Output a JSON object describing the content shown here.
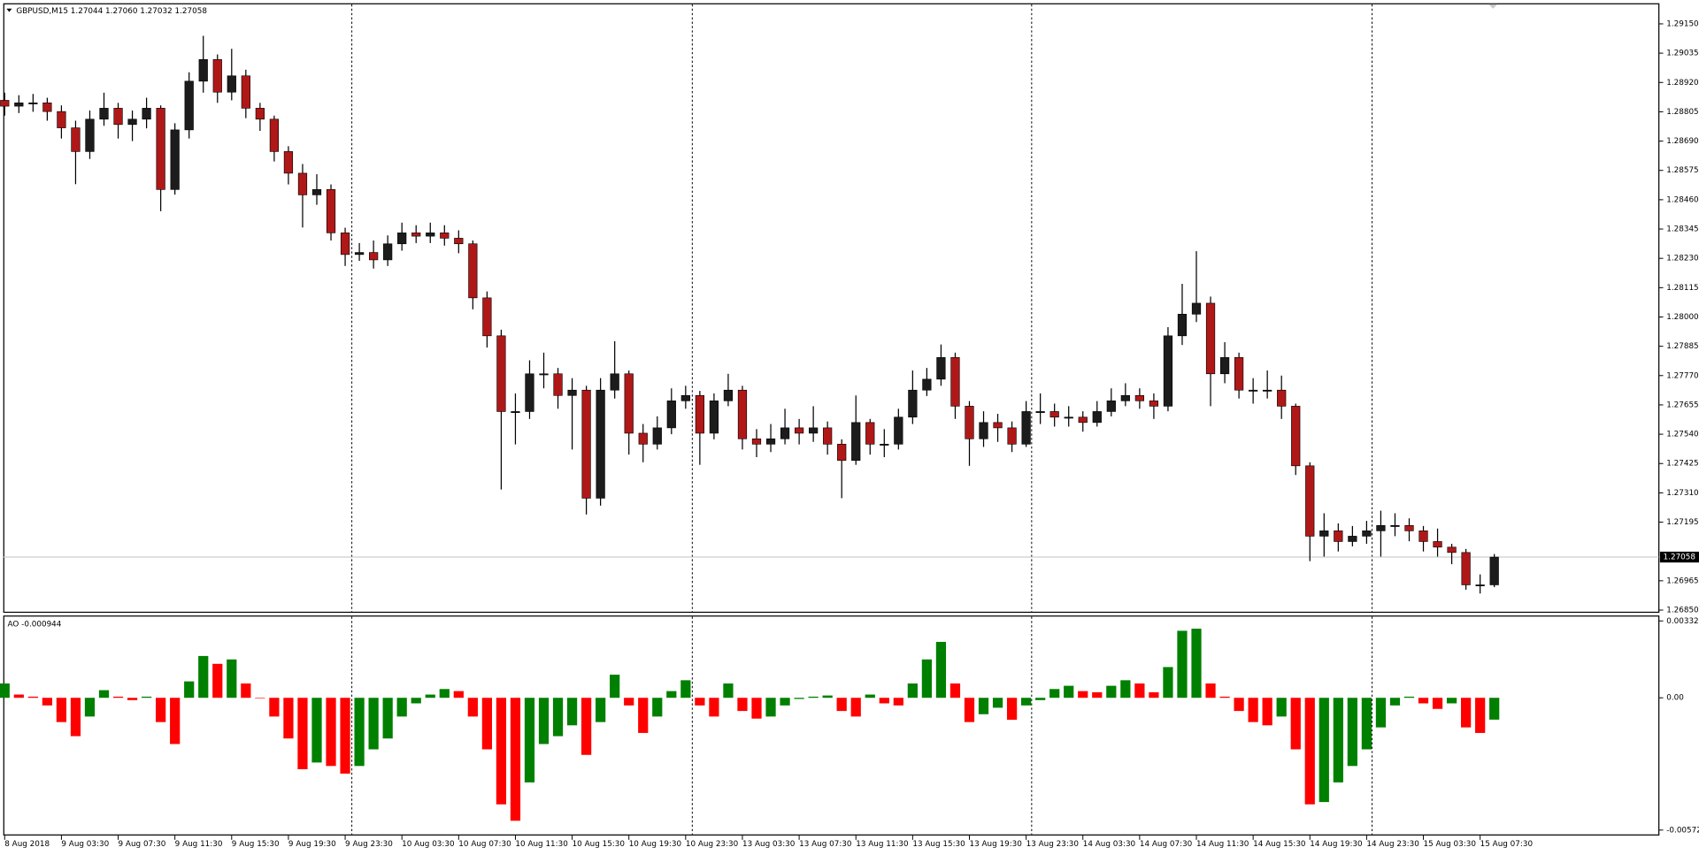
{
  "chart_data": [
    {
      "type": "candlestick",
      "title": "GBPUSD,M15  1.27044 1.27060 1.27032 1.27058",
      "up_color": "#1c1c1c",
      "down_color": "#b01818",
      "wick_color": "#000000",
      "xlim": [
        -0.1,
        116.6
      ],
      "ylim": [
        1.2685,
        1.2915
      ],
      "yticks": [
        {
          "value": 1.2915,
          "label": "1.29150"
        },
        1.29035,
        {
          "value": 1.2892,
          "label": "1.28920"
        },
        1.28805,
        {
          "value": 1.2869,
          "label": "1.28690"
        },
        1.28575,
        {
          "value": 1.2846,
          "label": "1.28460"
        },
        1.28345,
        {
          "value": 1.2823,
          "label": "1.28230"
        },
        1.28115,
        {
          "value": 1.28,
          "label": "1.28000"
        },
        1.27885,
        {
          "value": 1.2777,
          "label": "1.27770"
        },
        1.27655,
        {
          "value": 1.2754,
          "label": "1.27540"
        },
        1.27425,
        {
          "value": 1.2731,
          "label": "1.27310"
        },
        1.27195,
        1.26965,
        {
          "value": 1.2685,
          "label": "1.26850"
        }
      ],
      "last_price": 1.27058,
      "open": [
        1.2885,
        1.28827,
        1.2884,
        1.2884,
        1.28806,
        1.28742,
        1.28649,
        1.28776,
        1.28819,
        1.28755,
        1.28776,
        1.28819,
        1.285,
        1.28734,
        1.28925,
        1.2901,
        1.28882,
        1.28946,
        1.28819,
        1.28776,
        1.28649,
        1.28564,
        1.28479,
        1.285,
        1.2833,
        1.28245,
        1.28253,
        1.28224,
        1.28287,
        1.2833,
        1.28317,
        1.2833,
        1.28309,
        1.28287,
        1.28075,
        1.27926,
        1.27629,
        1.27629,
        1.27777,
        1.27777,
        1.27692,
        1.27713,
        1.27289,
        1.27713,
        1.27777,
        1.27544,
        1.27501,
        1.27565,
        1.27671,
        1.27692,
        1.27544,
        1.27671,
        1.27713,
        1.27522,
        1.27501,
        1.27522,
        1.27565,
        1.27544,
        1.27565,
        1.27501,
        1.27437,
        1.27586,
        1.27501,
        1.27501,
        1.27607,
        1.27713,
        1.27756,
        1.27841,
        1.2765,
        1.27522,
        1.27586,
        1.27565,
        1.27501,
        1.27629,
        1.27629,
        1.27607,
        1.27607,
        1.27586,
        1.27629,
        1.27671,
        1.27692,
        1.27671,
        1.2765,
        1.27926,
        1.28011,
        1.28054,
        1.27777,
        1.27841,
        1.27713,
        1.27713,
        1.27713,
        1.2765,
        1.27416,
        1.2714,
        1.27161,
        1.27119,
        1.2714,
        1.27161,
        1.27182,
        1.27182,
        1.27161,
        1.27119,
        1.27097,
        1.27076,
        1.26949,
        1.26949
      ],
      "high": [
        1.2888,
        1.2887,
        1.28875,
        1.2886,
        1.2883,
        1.2877,
        1.2881,
        1.2888,
        1.2884,
        1.2881,
        1.2886,
        1.2883,
        1.2876,
        1.2896,
        1.29103,
        1.2903,
        1.29052,
        1.2897,
        1.2884,
        1.2879,
        1.2867,
        1.286,
        1.2856,
        1.2852,
        1.2835,
        1.2829,
        1.283,
        1.2832,
        1.2837,
        1.2836,
        1.2837,
        1.2836,
        1.2834,
        1.283,
        1.281,
        1.2795,
        1.277,
        1.2783,
        1.2786,
        1.278,
        1.2776,
        1.2773,
        1.2776,
        1.27905,
        1.2779,
        1.2758,
        1.2761,
        1.2772,
        1.2773,
        1.2771,
        1.277,
        1.27777,
        1.2773,
        1.2756,
        1.2758,
        1.2764,
        1.276,
        1.2765,
        1.2759,
        1.2752,
        1.27692,
        1.276,
        1.2756,
        1.2764,
        1.2779,
        1.278,
        1.27892,
        1.2786,
        1.2767,
        1.2763,
        1.2762,
        1.2759,
        1.2767,
        1.277,
        1.2766,
        1.2765,
        1.2763,
        1.2767,
        1.2772,
        1.2774,
        1.2772,
        1.277,
        1.2796,
        1.2813,
        1.28258,
        1.2808,
        1.27901,
        1.2786,
        1.2776,
        1.2779,
        1.2777,
        1.2766,
        1.2743,
        1.2723,
        1.2719,
        1.2718,
        1.272,
        1.2724,
        1.2723,
        1.2721,
        1.2718,
        1.2717,
        1.2711,
        1.2709,
        1.2699,
        1.2707
      ],
      "low": [
        1.2879,
        1.288,
        1.28805,
        1.2877,
        1.287,
        1.28521,
        1.2862,
        1.2875,
        1.287,
        1.2869,
        1.2874,
        1.28415,
        1.2848,
        1.287,
        1.2888,
        1.2884,
        1.2885,
        1.2878,
        1.2873,
        1.2861,
        1.2852,
        1.28351,
        1.2844,
        1.283,
        1.282,
        1.2822,
        1.2819,
        1.282,
        1.2826,
        1.2829,
        1.2829,
        1.2828,
        1.2825,
        1.2803,
        1.2788,
        1.27323,
        1.275,
        1.276,
        1.2772,
        1.2764,
        1.2748,
        1.27225,
        1.2726,
        1.2768,
        1.2746,
        1.2743,
        1.2748,
        1.2754,
        1.2764,
        1.2742,
        1.2752,
        1.2765,
        1.2748,
        1.2745,
        1.2747,
        1.275,
        1.275,
        1.2751,
        1.2746,
        1.27289,
        1.2742,
        1.2746,
        1.2745,
        1.2748,
        1.2758,
        1.2769,
        1.2773,
        1.276,
        1.27416,
        1.2749,
        1.2751,
        1.2747,
        1.2749,
        1.2758,
        1.2757,
        1.2757,
        1.2755,
        1.2757,
        1.2761,
        1.2765,
        1.2764,
        1.276,
        1.2763,
        1.2789,
        1.2798,
        1.2765,
        1.2774,
        1.2768,
        1.2766,
        1.2768,
        1.276,
        1.2738,
        1.27042,
        1.2706,
        1.2708,
        1.271,
        1.2711,
        1.2706,
        1.2714,
        1.2712,
        1.2708,
        1.2706,
        1.2703,
        1.2693,
        1.26915,
        1.2694
      ],
      "close": [
        1.28827,
        1.2884,
        1.2884,
        1.28806,
        1.28742,
        1.28649,
        1.28776,
        1.28819,
        1.28755,
        1.28776,
        1.28819,
        1.285,
        1.28734,
        1.28925,
        1.2901,
        1.28882,
        1.28946,
        1.28819,
        1.28776,
        1.28649,
        1.28564,
        1.28479,
        1.285,
        1.2833,
        1.28245,
        1.28253,
        1.28224,
        1.28287,
        1.2833,
        1.28317,
        1.2833,
        1.28309,
        1.28287,
        1.28075,
        1.27926,
        1.27629,
        1.27629,
        1.27777,
        1.27777,
        1.27692,
        1.27713,
        1.27289,
        1.27713,
        1.27777,
        1.27544,
        1.27501,
        1.27565,
        1.27671,
        1.27692,
        1.27544,
        1.27671,
        1.27713,
        1.27522,
        1.27501,
        1.27522,
        1.27565,
        1.27544,
        1.27565,
        1.27501,
        1.27437,
        1.27586,
        1.27501,
        1.27501,
        1.27607,
        1.27713,
        1.27756,
        1.27841,
        1.2765,
        1.27522,
        1.27586,
        1.27565,
        1.27501,
        1.27629,
        1.27629,
        1.27607,
        1.27607,
        1.27586,
        1.27629,
        1.27671,
        1.27692,
        1.27671,
        1.2765,
        1.27926,
        1.28011,
        1.28054,
        1.27777,
        1.27841,
        1.27713,
        1.27713,
        1.27713,
        1.2765,
        1.27416,
        1.2714,
        1.27161,
        1.27119,
        1.2714,
        1.27161,
        1.27182,
        1.27182,
        1.27161,
        1.27119,
        1.27097,
        1.27076,
        1.26949,
        1.26949,
        1.27058
      ]
    },
    {
      "type": "bar",
      "title": "AO -0.000944",
      "up_color": "#008000",
      "down_color": "#ff0000",
      "xlim": [
        -0.1,
        116.6
      ],
      "ylim": [
        -0.005723,
        0.003326
      ],
      "yticks": [
        0.003326,
        {
          "value": 0,
          "label": "0.00"
        },
        -0.005723
      ],
      "xticks": [
        {
          "value": 0,
          "label": "8 Aug 2018"
        },
        {
          "value": 4,
          "label": "9 Aug 03:30"
        },
        {
          "value": 8,
          "label": "9 Aug 07:30"
        },
        {
          "value": 12,
          "label": "9 Aug 11:30"
        },
        {
          "value": 16,
          "label": "9 Aug 15:30"
        },
        {
          "value": 20,
          "label": "9 Aug 19:30"
        },
        {
          "value": 24,
          "label": "9 Aug 23:30"
        },
        {
          "value": 28,
          "label": "10 Aug 03:30"
        },
        {
          "value": 32,
          "label": "10 Aug 07:30"
        },
        {
          "value": 36,
          "label": "10 Aug 11:30"
        },
        {
          "value": 40,
          "label": "10 Aug 15:30"
        },
        {
          "value": 44,
          "label": "10 Aug 19:30"
        },
        {
          "value": 48,
          "label": "10 Aug 23:30"
        },
        {
          "value": 52,
          "label": "13 Aug 03:30"
        },
        {
          "value": 56,
          "label": "13 Aug 07:30"
        },
        {
          "value": 60,
          "label": "13 Aug 11:30"
        },
        {
          "value": 64,
          "label": "13 Aug 15:30"
        },
        {
          "value": 68,
          "label": "13 Aug 19:30"
        },
        {
          "value": 72,
          "label": "13 Aug 23:30"
        },
        {
          "value": 76,
          "label": "14 Aug 03:30"
        },
        {
          "value": 80,
          "label": "14 Aug 07:30"
        },
        {
          "value": 84,
          "label": "14 Aug 11:30"
        },
        {
          "value": 88,
          "label": "14 Aug 15:30"
        },
        {
          "value": 92,
          "label": "14 Aug 19:30"
        },
        {
          "value": 96,
          "label": "14 Aug 23:30"
        },
        {
          "value": 100,
          "label": "15 Aug 03:30"
        },
        {
          "value": 104,
          "label": "15 Aug 07:30"
        }
      ],
      "values": [
        0.00062,
        0.00014,
        5e-05,
        -0.00033,
        -0.00105,
        -0.00166,
        -0.00081,
        0.00033,
        5e-05,
        -0.0001,
        5e-05,
        -0.00105,
        -0.002,
        0.00071,
        0.00181,
        0.00147,
        0.00166,
        0.00062,
        0,
        -0.00081,
        -0.00176,
        -0.00309,
        -0.0028,
        -0.00295,
        -0.00328,
        -0.00295,
        -0.00223,
        -0.00176,
        -0.00081,
        -0.00024,
        0.00014,
        0.00038,
        0.00029,
        -0.00081,
        -0.00223,
        -0.00461,
        -0.00532,
        -0.00366,
        -0.002,
        -0.00166,
        -0.00119,
        -0.00247,
        -0.00105,
        0.001,
        -0.00033,
        -0.00152,
        -0.00081,
        0.00029,
        0.00076,
        -0.00033,
        -0.00081,
        0.00062,
        -0.00057,
        -0.0009,
        -0.00081,
        -0.00033,
        -5e-05,
        5e-05,
        0.0001,
        -0.00057,
        -0.00081,
        0.00014,
        -0.00024,
        -0.00033,
        0.00062,
        0.00166,
        0.00242,
        0.00062,
        -0.00105,
        -0.00071,
        -0.00043,
        -0.00095,
        -0.00033,
        -0.0001,
        0.00038,
        0.00052,
        0.00029,
        0.00024,
        0.00052,
        0.00076,
        0.00062,
        0.00024,
        0.00133,
        0.0029,
        0.00299,
        0.00062,
        5e-05,
        -0.00057,
        -0.00105,
        -0.00119,
        -0.00081,
        -0.00223,
        -0.00461,
        -0.00451,
        -0.00366,
        -0.00295,
        -0.00223,
        -0.00128,
        -0.00033,
        5e-05,
        -0.00024,
        -0.00048,
        -0.00024,
        -0.00128,
        -0.00152,
        -0.000944
      ]
    }
  ]
}
